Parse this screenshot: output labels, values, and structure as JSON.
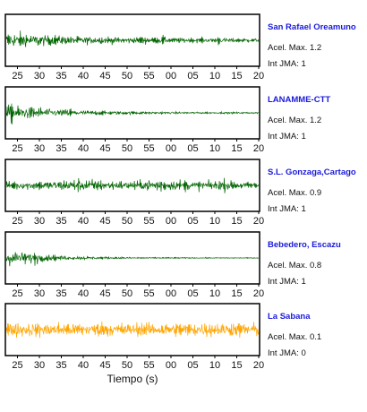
{
  "chart_data": {
    "type": "line",
    "xlabel": "Tiempo (s)",
    "x_tick_labels": [
      "25",
      "30",
      "35",
      "40",
      "45",
      "50",
      "55",
      "00",
      "05",
      "10",
      "15",
      "20"
    ],
    "panels": [
      {
        "station": "San Rafael Oreamuno",
        "acel_label": "Acel. Max. 1.2",
        "int_label": "Int JMA: 1",
        "color": "#006400",
        "envelope": [
          [
            0,
            0.95
          ],
          [
            0.04,
            0.85
          ],
          [
            0.1,
            0.7
          ],
          [
            0.2,
            0.55
          ],
          [
            0.3,
            0.45
          ],
          [
            0.45,
            0.38
          ],
          [
            0.6,
            0.32
          ],
          [
            0.75,
            0.28
          ],
          [
            0.9,
            0.25
          ],
          [
            1,
            0.22
          ]
        ],
        "bursts": [
          [
            0.13,
            0.25
          ],
          [
            0.54,
            0.2
          ],
          [
            0.62,
            0.2
          ],
          [
            0.84,
            0.35
          ]
        ]
      },
      {
        "station": "LANAMME-CTT",
        "acel_label": "Acel. Max. 1.2",
        "int_label": "Int JMA: 1",
        "color": "#006400",
        "envelope": [
          [
            0,
            0.95
          ],
          [
            0.05,
            0.8
          ],
          [
            0.12,
            0.65
          ],
          [
            0.2,
            0.45
          ],
          [
            0.3,
            0.3
          ],
          [
            0.45,
            0.2
          ],
          [
            0.6,
            0.14
          ],
          [
            0.8,
            0.1
          ],
          [
            1,
            0.09
          ]
        ],
        "bursts": [
          [
            0.02,
            0.3
          ],
          [
            0.25,
            0.2
          ]
        ]
      },
      {
        "station": "S.L. Gonzaga,Cartago",
        "acel_label": "Acel. Max. 0.9",
        "int_label": "Int JMA: 1",
        "color": "#006400",
        "envelope": [
          [
            0,
            0.45
          ],
          [
            0.1,
            0.5
          ],
          [
            0.2,
            0.55
          ],
          [
            0.28,
            0.75
          ],
          [
            0.35,
            0.6
          ],
          [
            0.45,
            0.5
          ],
          [
            0.55,
            0.55
          ],
          [
            0.6,
            0.85
          ],
          [
            0.65,
            0.6
          ],
          [
            0.75,
            0.5
          ],
          [
            0.85,
            0.6
          ],
          [
            0.93,
            0.45
          ],
          [
            1,
            0.4
          ]
        ],
        "bursts": [
          [
            0.05,
            0.15
          ],
          [
            0.34,
            0.2
          ],
          [
            0.6,
            0.2
          ],
          [
            0.87,
            0.15
          ]
        ]
      },
      {
        "station": "Bebedero, Escazu",
        "acel_label": "Acel. Max. 0.8",
        "int_label": "Int JMA: 1",
        "color": "#006400",
        "envelope": [
          [
            0,
            0.95
          ],
          [
            0.05,
            0.8
          ],
          [
            0.1,
            0.6
          ],
          [
            0.15,
            0.4
          ],
          [
            0.25,
            0.22
          ],
          [
            0.4,
            0.12
          ],
          [
            0.6,
            0.07
          ],
          [
            0.8,
            0.05
          ],
          [
            1,
            0.04
          ]
        ],
        "bursts": [
          [
            0.04,
            0.25
          ],
          [
            0.12,
            0.2
          ]
        ]
      },
      {
        "station": "La Sabana",
        "acel_label": "Acel. Max. 0.1",
        "int_label": "Int JMA: 0",
        "color": "#ffa500",
        "envelope": [
          [
            0,
            0.85
          ],
          [
            0.2,
            0.8
          ],
          [
            0.4,
            0.78
          ],
          [
            0.6,
            0.8
          ],
          [
            0.8,
            0.82
          ],
          [
            1,
            0.8
          ]
        ],
        "bursts": [
          [
            0.01,
            0.1
          ],
          [
            0.8,
            0.1
          ],
          [
            0.98,
            0.1
          ]
        ]
      }
    ]
  }
}
